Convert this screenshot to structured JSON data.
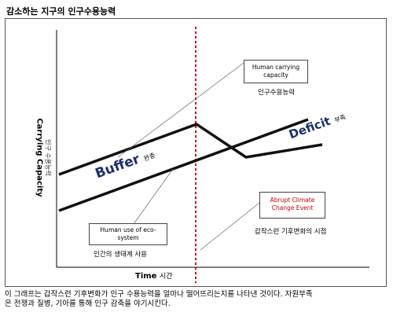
{
  "header": {
    "title": "감소하는 지구의 인구수용능력"
  },
  "axes": {
    "y_label_en": "Carrying Capacity",
    "y_label_ko": "인구 수용능력",
    "x_label_en": "Time",
    "x_label_ko": "시간"
  },
  "labels": {
    "buffer_en": "Buffer",
    "buffer_ko": "완충",
    "deficit_en": "Deficit",
    "deficit_ko": "부족"
  },
  "boxes": {
    "human_capacity_line1": "Human carrying",
    "human_capacity_line2": "capacity",
    "human_capacity_ko": "인구수용능력",
    "human_use_line1": "Human use of eco-",
    "human_use_line2": "system",
    "human_use_ko": "인간의 생태계 사용",
    "abrupt_line1": "Abrupt Climate",
    "abrupt_line2": "Change Event",
    "abrupt_ko": "갑작스런 기후변화의 시점"
  },
  "colors": {
    "event_line": "#cc0000",
    "buffer_text": "#1a2f6e",
    "deficit_text": "#1a2f6e",
    "abrupt_text": "#cc0000"
  },
  "caption": {
    "line1": "이 그래프는 갑작스런 기후변화가 인구 수용능력을 얼마나 떨어뜨리는지를 나타낸 것이다. 자원부족",
    "line2": "은 전쟁과 질병, 기아를 통해 인구 감축을 야기시킨다."
  }
}
